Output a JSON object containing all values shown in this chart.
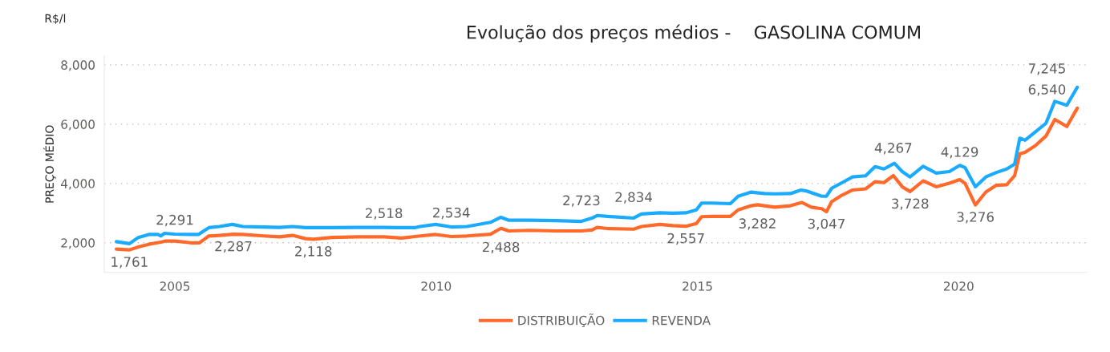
{
  "chart_data": {
    "type": "line",
    "title": "Evolução dos preços médios -    GASOLINA COMUM",
    "ylabel": "PREÇO MÉDIO",
    "annotations": [
      "R$/l"
    ],
    "xlim": [
      2003.65,
      2022.45
    ],
    "xticks": [
      2005,
      2010,
      2015,
      2020
    ],
    "ylim": [
      1000,
      8300
    ],
    "yticks": [
      {
        "value": 2000,
        "label": "2,000"
      },
      {
        "value": 4000,
        "label": "4,000"
      },
      {
        "value": 6000,
        "label": "6,000"
      },
      {
        "value": 8000,
        "label": "8,000"
      }
    ],
    "grid": "y",
    "legend": "bottom",
    "line_style": "solid",
    "marker": "none",
    "series": [
      {
        "name": "DISTRIBUIÇÃO",
        "color": "#ff6a2b",
        "x": [
          2003.88,
          2004.13,
          2004.3,
          2004.5,
          2004.75,
          2004.82,
          2005.0,
          2005.3,
          2005.47,
          2005.65,
          2005.85,
          2006.12,
          2006.3,
          2006.7,
          2007.0,
          2007.25,
          2007.5,
          2007.65,
          2008.0,
          2008.5,
          2009.0,
          2009.34,
          2009.59,
          2009.99,
          2010.29,
          2010.59,
          2011.04,
          2011.24,
          2011.39,
          2011.79,
          2012.29,
          2012.78,
          2012.98,
          2013.08,
          2013.28,
          2013.78,
          2013.93,
          2014.28,
          2014.53,
          2014.78,
          2014.98,
          2015.08,
          2015.28,
          2015.63,
          2015.78,
          2016.03,
          2016.15,
          2016.28,
          2016.48,
          2016.78,
          2017.0,
          2017.18,
          2017.38,
          2017.47,
          2017.57,
          2017.77,
          2017.97,
          2018.22,
          2018.4,
          2018.57,
          2018.75,
          2018.92,
          2019.07,
          2019.32,
          2019.57,
          2019.82,
          2020.02,
          2020.12,
          2020.32,
          2020.52,
          2020.72,
          2020.92,
          2021.07,
          2021.17,
          2021.27,
          2021.47,
          2021.67,
          2021.84,
          2022.07,
          2022.27
        ],
        "values": [
          1790,
          1761,
          1860,
          1950,
          2030,
          2060,
          2060,
          2000,
          2000,
          2230,
          2250,
          2287,
          2280,
          2230,
          2200,
          2250,
          2140,
          2118,
          2180,
          2200,
          2200,
          2160,
          2210,
          2280,
          2210,
          2230,
          2290,
          2488,
          2400,
          2420,
          2400,
          2400,
          2430,
          2520,
          2480,
          2460,
          2550,
          2620,
          2580,
          2557,
          2650,
          2880,
          2890,
          2890,
          3110,
          3250,
          3282,
          3250,
          3200,
          3250,
          3360,
          3200,
          3150,
          3047,
          3390,
          3610,
          3780,
          3820,
          4060,
          4030,
          4267,
          3890,
          3728,
          4090,
          3890,
          4010,
          4129,
          4010,
          3276,
          3710,
          3940,
          3960,
          4260,
          5000,
          5050,
          5280,
          5600,
          6160,
          5920,
          6540
        ],
        "value_labels": [
          null,
          "1,761",
          null,
          null,
          null,
          null,
          null,
          null,
          null,
          null,
          null,
          "2,287",
          null,
          null,
          null,
          null,
          null,
          "2,118",
          null,
          null,
          null,
          null,
          null,
          null,
          null,
          null,
          null,
          "2,488",
          null,
          null,
          null,
          null,
          null,
          null,
          null,
          null,
          null,
          null,
          null,
          "2,557",
          null,
          null,
          null,
          null,
          null,
          null,
          "3,282",
          null,
          null,
          null,
          null,
          null,
          null,
          "3,047",
          null,
          null,
          null,
          null,
          null,
          null,
          "4,267",
          null,
          "3,728",
          null,
          null,
          null,
          "4,129",
          null,
          "3,276",
          null,
          null,
          null,
          null,
          null,
          null,
          null,
          null,
          null,
          null,
          "6,540"
        ]
      },
      {
        "name": "REVENDA",
        "color": "#1aabff",
        "x": [
          2003.88,
          2004.13,
          2004.3,
          2004.5,
          2004.68,
          2004.73,
          2004.8,
          2005.0,
          2005.3,
          2005.45,
          2005.65,
          2005.85,
          2006.1,
          2006.3,
          2006.7,
          2007.0,
          2007.25,
          2007.5,
          2008.0,
          2008.5,
          2009.0,
          2009.24,
          2009.59,
          2009.69,
          2009.99,
          2010.29,
          2010.59,
          2011.04,
          2011.24,
          2011.39,
          2011.79,
          2012.29,
          2012.78,
          2012.98,
          2013.08,
          2013.28,
          2013.78,
          2013.93,
          2014.28,
          2014.53,
          2014.78,
          2014.98,
          2015.08,
          2015.28,
          2015.63,
          2015.78,
          2016.03,
          2016.28,
          2016.48,
          2016.78,
          2016.98,
          2017.08,
          2017.38,
          2017.47,
          2017.57,
          2017.77,
          2017.97,
          2018.22,
          2018.4,
          2018.57,
          2018.77,
          2018.92,
          2019.07,
          2019.32,
          2019.57,
          2019.82,
          2020.02,
          2020.12,
          2020.32,
          2020.52,
          2020.72,
          2020.92,
          2021.07,
          2021.17,
          2021.27,
          2021.47,
          2021.67,
          2021.84,
          2022.07,
          2022.27
        ],
        "values": [
          2040,
          1970,
          2180,
          2280,
          2280,
          2230,
          2320,
          2291,
          2280,
          2280,
          2510,
          2550,
          2620,
          2550,
          2530,
          2520,
          2550,
          2510,
          2510,
          2520,
          2518,
          2510,
          2510,
          2550,
          2620,
          2534,
          2550,
          2690,
          2860,
          2760,
          2760,
          2750,
          2723,
          2830,
          2920,
          2890,
          2834,
          2970,
          3010,
          3000,
          3010,
          3110,
          3340,
          3340,
          3320,
          3570,
          3710,
          3660,
          3650,
          3660,
          3780,
          3750,
          3570,
          3570,
          3840,
          4030,
          4220,
          4260,
          4570,
          4490,
          4680,
          4400,
          4220,
          4580,
          4350,
          4400,
          4610,
          4540,
          3890,
          4220,
          4370,
          4490,
          4650,
          5530,
          5460,
          5740,
          6030,
          6770,
          6640,
          7245
        ],
        "value_labels": [
          null,
          null,
          null,
          null,
          null,
          null,
          null,
          "2,291",
          null,
          null,
          null,
          null,
          null,
          null,
          null,
          null,
          null,
          null,
          null,
          null,
          "2,518",
          null,
          null,
          null,
          null,
          "2,534",
          null,
          null,
          null,
          null,
          null,
          null,
          "2,723",
          null,
          null,
          null,
          "2,834",
          null,
          null,
          null,
          null,
          null,
          null,
          null,
          null,
          null,
          null,
          null,
          null,
          null,
          null,
          null,
          null,
          null,
          null,
          null,
          null,
          null,
          null,
          null,
          null,
          null,
          null,
          null,
          null,
          null,
          null,
          null,
          null,
          null,
          null,
          null,
          null,
          null,
          null,
          null,
          null,
          null,
          null,
          "7,245"
        ]
      }
    ]
  }
}
